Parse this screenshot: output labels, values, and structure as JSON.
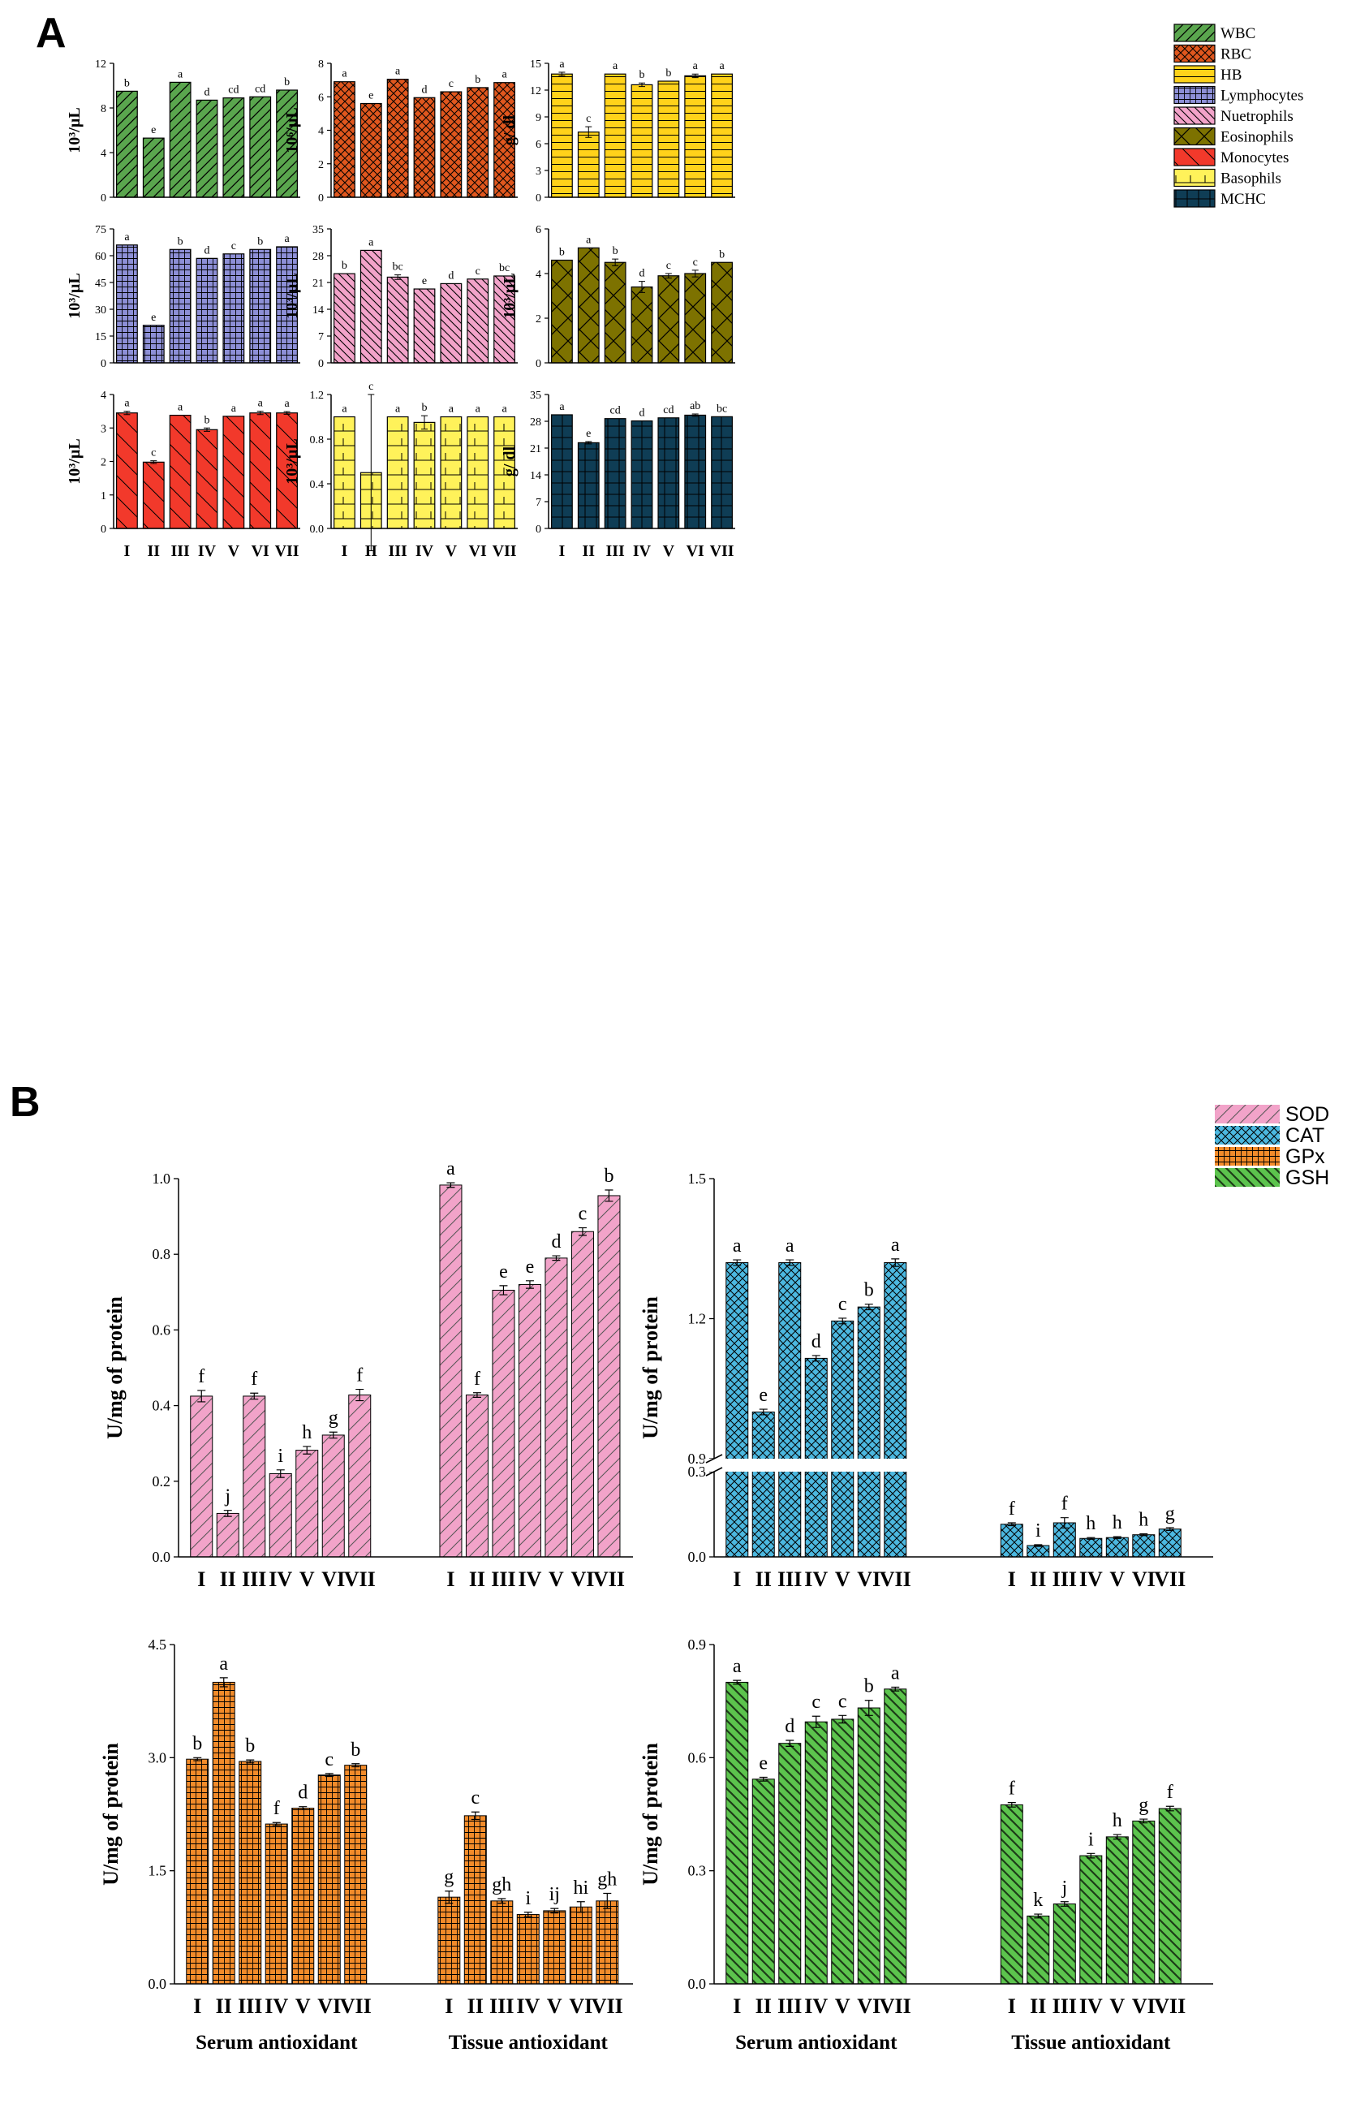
{
  "panels": {
    "a": "A",
    "b": "B"
  },
  "categories": [
    "I",
    "II",
    "III",
    "IV",
    "V",
    "VI",
    "VII"
  ],
  "colors": {
    "WBC": "#5aa64e",
    "RBC": "#e0571e",
    "HB": "#ffd21a",
    "Lymphocytes": "#8d8fd6",
    "Nuetrophils": "#f2a3c9",
    "Eosinophils": "#7d7200",
    "Monocytes": "#f2392b",
    "Basophils": "#fff25a",
    "MCHC": "#0f3d55",
    "SOD": "#f2a3c9",
    "CAT": "#4cb8e0",
    "GPx": "#f28b2a",
    "GSH": "#5cc44d"
  },
  "legend_a": [
    "WBC",
    "RBC",
    "HB",
    "Lymphocytes",
    "Nuetrophils",
    "Eosinophils",
    "Monocytes",
    "Basophils",
    "MCHC"
  ],
  "legend_b": [
    "SOD",
    "CAT",
    "GPx",
    "GSH"
  ],
  "chart_data": [
    {
      "type": "bar",
      "panel": "A",
      "id": "wbc",
      "series": "WBC",
      "ylabel": "10³/µL",
      "ylim": [
        0,
        12
      ],
      "ticks": [
        0,
        4,
        8,
        12
      ],
      "values": [
        9.5,
        5.3,
        10.3,
        8.7,
        8.9,
        9.0,
        9.6
      ],
      "errors": [
        0,
        0,
        0,
        0,
        0,
        0,
        0
      ],
      "letters": [
        "b",
        "e",
        "a",
        "d",
        "cd",
        "cd",
        "b"
      ]
    },
    {
      "type": "bar",
      "panel": "A",
      "id": "rbc",
      "series": "RBC",
      "ylabel": "10⁶/µL",
      "ylim": [
        0,
        8
      ],
      "ticks": [
        0,
        2,
        4,
        6,
        8
      ],
      "values": [
        6.9,
        5.6,
        7.05,
        5.95,
        6.3,
        6.55,
        6.85
      ],
      "errors": [
        0,
        0,
        0,
        0,
        0,
        0,
        0
      ],
      "letters": [
        "a",
        "e",
        "a",
        "d",
        "c",
        "b",
        "a"
      ]
    },
    {
      "type": "bar",
      "panel": "A",
      "id": "hb",
      "series": "HB",
      "ylabel": "g/ dl",
      "ylim": [
        0,
        15
      ],
      "ticks": [
        0,
        3,
        6,
        9,
        12,
        15
      ],
      "values": [
        13.8,
        7.3,
        13.8,
        12.6,
        13.0,
        13.6,
        13.8
      ],
      "errors": [
        0.2,
        0.6,
        0,
        0.2,
        0,
        0.2,
        0
      ],
      "letters": [
        "a",
        "c",
        "a",
        "b",
        "b",
        "a",
        "a"
      ]
    },
    {
      "type": "bar",
      "panel": "A",
      "id": "lym",
      "series": "Lymphocytes",
      "ylabel": "10³/µL",
      "ylim": [
        0,
        75
      ],
      "ticks": [
        0,
        15,
        30,
        45,
        60,
        75
      ],
      "values": [
        66,
        21,
        63.5,
        58.5,
        61,
        63.5,
        65
      ],
      "errors": [
        0,
        0,
        0,
        0,
        0,
        0,
        0
      ],
      "letters": [
        "a",
        "e",
        "b",
        "d",
        "c",
        "b",
        "a"
      ]
    },
    {
      "type": "bar",
      "panel": "A",
      "id": "neu",
      "series": "Nuetrophils",
      "ylabel": "10³/µL",
      "ylim": [
        0,
        35
      ],
      "ticks": [
        0,
        7,
        14,
        21,
        28,
        35
      ],
      "values": [
        23.3,
        29.4,
        22.4,
        19.3,
        20.7,
        21.9,
        22.7
      ],
      "errors": [
        0,
        0,
        0.6,
        0,
        0,
        0,
        0
      ],
      "letters": [
        "b",
        "a",
        "bc",
        "e",
        "d",
        "c",
        "bc"
      ]
    },
    {
      "type": "bar",
      "panel": "A",
      "id": "eos",
      "series": "Eosinophils",
      "ylabel": "10³/µL",
      "ylim": [
        0,
        6
      ],
      "ticks": [
        0,
        2,
        4,
        6
      ],
      "values": [
        4.6,
        5.15,
        4.5,
        3.4,
        3.9,
        4.0,
        4.5
      ],
      "errors": [
        0,
        0,
        0.15,
        0.25,
        0.1,
        0.15,
        0
      ],
      "letters": [
        "b",
        "a",
        "b",
        "d",
        "c",
        "c",
        "b"
      ]
    },
    {
      "type": "bar",
      "panel": "A",
      "id": "mono",
      "series": "Monocytes",
      "ylabel": "10³/µL",
      "ylim": [
        0,
        4
      ],
      "ticks": [
        0,
        1,
        2,
        3,
        4
      ],
      "values": [
        3.45,
        1.98,
        3.38,
        2.95,
        3.35,
        3.45,
        3.45
      ],
      "errors": [
        0.05,
        0.04,
        0,
        0.05,
        0,
        0.05,
        0.04
      ],
      "letters": [
        "a",
        "c",
        "a",
        "b",
        "a",
        "a",
        "a"
      ]
    },
    {
      "type": "bar",
      "panel": "A",
      "id": "baso",
      "series": "Basophils",
      "ylabel": "10³/µL",
      "ylim": [
        0,
        1.2
      ],
      "ticks": [
        0.0,
        0.4,
        0.8,
        1.2
      ],
      "values": [
        1.0,
        0.5,
        1.0,
        0.95,
        1.0,
        1.0,
        1.0
      ],
      "errors": [
        0,
        0.7,
        0,
        0.06,
        0,
        0,
        0
      ],
      "letters": [
        "a",
        "c",
        "a",
        "b",
        "a",
        "a",
        "a"
      ]
    },
    {
      "type": "bar",
      "panel": "A",
      "id": "mchc",
      "series": "MCHC",
      "ylabel": "g/ dl",
      "ylim": [
        0,
        35
      ],
      "ticks": [
        0,
        7,
        14,
        21,
        28,
        35
      ],
      "values": [
        29.7,
        22.4,
        28.7,
        28.1,
        28.9,
        29.6,
        29.2
      ],
      "errors": [
        0,
        0.3,
        0,
        0,
        0,
        0.3,
        0
      ],
      "letters": [
        "a",
        "e",
        "cd",
        "d",
        "cd",
        "ab",
        "bc"
      ]
    },
    {
      "type": "bar",
      "panel": "B",
      "id": "sod",
      "series": "SOD",
      "ylabel": "U/mg of protein",
      "ylim": [
        0,
        1.0
      ],
      "ticks": [
        0.0,
        0.2,
        0.4,
        0.6,
        0.8,
        1.0
      ],
      "groups": [
        {
          "name": "Serum antioxidant",
          "values": [
            0.425,
            0.115,
            0.425,
            0.22,
            0.282,
            0.322,
            0.428
          ],
          "errors": [
            0.015,
            0.008,
            0.008,
            0.01,
            0.01,
            0.008,
            0.015
          ],
          "letters": [
            "f",
            "j",
            "f",
            "i",
            "h",
            "g",
            "f"
          ]
        },
        {
          "name": "Tissue antioxidant",
          "values": [
            0.983,
            0.428,
            0.705,
            0.72,
            0.79,
            0.86,
            0.955
          ],
          "errors": [
            0.006,
            0.006,
            0.012,
            0.01,
            0.006,
            0.01,
            0.015
          ],
          "letters": [
            "a",
            "f",
            "e",
            "e",
            "d",
            "c",
            "b"
          ]
        }
      ]
    },
    {
      "type": "bar",
      "panel": "B",
      "id": "cat",
      "series": "CAT",
      "ylabel": "U/mg of protein",
      "broken_axis": {
        "lower": [
          0,
          0.3
        ],
        "upper": [
          0.9,
          1.5
        ]
      },
      "ticks_lower": [
        0.0,
        0.3
      ],
      "ticks_upper": [
        0.9,
        1.2,
        1.5
      ],
      "groups": [
        {
          "name": "Serum antioxidant",
          "values": [
            1.32,
            1.0,
            1.32,
            1.115,
            1.195,
            1.225,
            1.32
          ],
          "errors": [
            0.006,
            0.006,
            0.006,
            0.006,
            0.006,
            0.006,
            0.008
          ],
          "letters": [
            "a",
            "e",
            "a",
            "d",
            "c",
            "b",
            "a"
          ]
        },
        {
          "name": "Tissue antioxidant",
          "values": [
            0.115,
            0.04,
            0.12,
            0.065,
            0.068,
            0.078,
            0.098
          ],
          "errors": [
            0.005,
            0.003,
            0.018,
            0.003,
            0.003,
            0.003,
            0.005
          ],
          "letters": [
            "f",
            "i",
            "f",
            "h",
            "h",
            "h",
            "g"
          ]
        }
      ]
    },
    {
      "type": "bar",
      "panel": "B",
      "id": "gpx",
      "series": "GPx",
      "ylabel": "U/mg of protein",
      "ylim": [
        0,
        4.5
      ],
      "ticks": [
        0.0,
        1.5,
        3.0,
        4.5
      ],
      "groups": [
        {
          "name": "Serum antioxidant",
          "values": [
            2.98,
            4.0,
            2.95,
            2.12,
            2.33,
            2.77,
            2.9
          ],
          "errors": [
            0.02,
            0.06,
            0.02,
            0.02,
            0.02,
            0.02,
            0.02
          ],
          "letters": [
            "b",
            "a",
            "b",
            "f",
            "d",
            "c",
            "b"
          ]
        },
        {
          "name": "Tissue antioxidant",
          "values": [
            1.15,
            2.23,
            1.1,
            0.92,
            0.97,
            1.02,
            1.1
          ],
          "errors": [
            0.08,
            0.05,
            0.03,
            0.03,
            0.03,
            0.07,
            0.1
          ],
          "letters": [
            "g",
            "c",
            "gh",
            "i",
            "ij",
            "hi",
            "gh"
          ]
        }
      ]
    },
    {
      "type": "bar",
      "panel": "B",
      "id": "gsh",
      "series": "GSH",
      "ylabel": "U/mg of protein",
      "ylim": [
        0,
        0.9
      ],
      "ticks": [
        0.0,
        0.3,
        0.6,
        0.9
      ],
      "groups": [
        {
          "name": "Serum antioxidant",
          "values": [
            0.8,
            0.543,
            0.638,
            0.695,
            0.702,
            0.732,
            0.782
          ],
          "errors": [
            0.005,
            0.005,
            0.008,
            0.015,
            0.01,
            0.02,
            0.005
          ],
          "letters": [
            "a",
            "e",
            "d",
            "c",
            "c",
            "b",
            "a"
          ]
        },
        {
          "name": "Tissue antioxidant",
          "values": [
            0.475,
            0.18,
            0.212,
            0.34,
            0.39,
            0.432,
            0.465
          ],
          "errors": [
            0.006,
            0.005,
            0.006,
            0.006,
            0.006,
            0.005,
            0.006
          ],
          "letters": [
            "f",
            "k",
            "j",
            "i",
            "h",
            "g",
            "f"
          ]
        }
      ]
    }
  ]
}
